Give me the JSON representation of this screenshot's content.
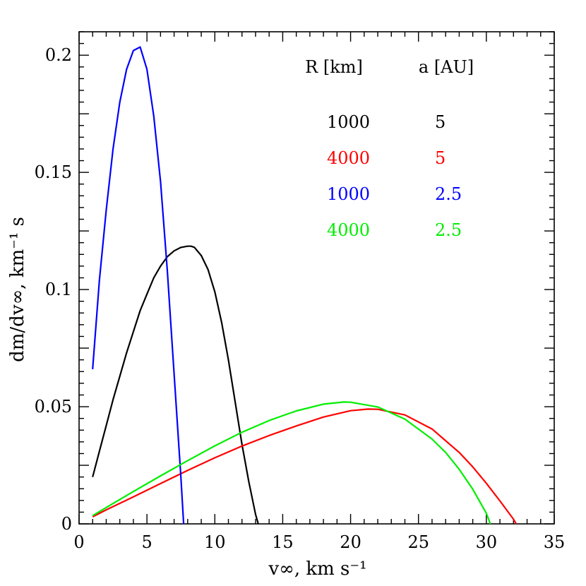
{
  "chart_data": {
    "type": "line",
    "xlabel": "v∞, km s⁻¹",
    "ylabel": "dm/dv∞, km⁻¹ s",
    "xlim": [
      0,
      35
    ],
    "ylim": [
      0,
      0.21
    ],
    "x_ticks": [
      "0",
      "5",
      "10",
      "15",
      "20",
      "25",
      "30",
      "35"
    ],
    "y_ticks": [
      "0",
      "0.05",
      "0.1",
      "0.15",
      "0.2"
    ],
    "legend": {
      "headers": [
        "R [km]",
        "a [AU]"
      ],
      "rows": [
        {
          "R": "1000",
          "a": "5",
          "color": "#000000"
        },
        {
          "R": "4000",
          "a": "5",
          "color": "#ff0000"
        },
        {
          "R": "1000",
          "a": "2.5",
          "color": "#0000ff"
        },
        {
          "R": "4000",
          "a": "2.5",
          "color": "#00ee00"
        }
      ],
      "placement": "top-right"
    },
    "series": [
      {
        "color": "#000000",
        "x": [
          1.0,
          1.5,
          2.0,
          2.5,
          3.0,
          3.5,
          4.0,
          4.5,
          5.0,
          5.5,
          6.0,
          6.5,
          7.0,
          7.5,
          8.0,
          8.25,
          8.5,
          9.0,
          9.5,
          10.0,
          10.5,
          11.0,
          11.5,
          12.0,
          12.5,
          13.0,
          13.2
        ],
        "y": [
          0.02,
          0.031,
          0.042,
          0.053,
          0.063,
          0.073,
          0.082,
          0.091,
          0.098,
          0.105,
          0.11,
          0.114,
          0.1165,
          0.118,
          0.1185,
          0.1185,
          0.118,
          0.1145,
          0.1085,
          0.099,
          0.086,
          0.07,
          0.052,
          0.034,
          0.018,
          0.004,
          0.0
        ]
      },
      {
        "color": "#ff0000",
        "x": [
          1,
          2,
          4,
          6,
          8,
          10,
          12,
          14,
          16,
          18,
          20,
          21.3,
          22,
          24,
          26,
          28,
          29,
          30,
          31,
          32,
          32.2
        ],
        "y": [
          0.003,
          0.006,
          0.0115,
          0.0172,
          0.0228,
          0.0282,
          0.0332,
          0.0377,
          0.0418,
          0.0456,
          0.0483,
          0.049,
          0.0489,
          0.0465,
          0.0405,
          0.0305,
          0.0243,
          0.0173,
          0.0098,
          0.002,
          0.0
        ]
      },
      {
        "color": "#0000ff",
        "x": [
          1.0,
          1.25,
          1.5,
          2.0,
          2.5,
          3.0,
          3.5,
          4.0,
          4.5,
          5.0,
          5.5,
          6.0,
          6.5,
          7.0,
          7.5,
          7.7
        ],
        "y": [
          0.066,
          0.085,
          0.104,
          0.134,
          0.16,
          0.18,
          0.194,
          0.202,
          0.2035,
          0.194,
          0.174,
          0.146,
          0.108,
          0.064,
          0.02,
          0.0
        ]
      },
      {
        "color": "#00ee00",
        "x": [
          1,
          2,
          4,
          6,
          8,
          10,
          12,
          14,
          16,
          18,
          19.5,
          20,
          22,
          24,
          26,
          27,
          28,
          29,
          30,
          30.3
        ],
        "y": [
          0.0035,
          0.007,
          0.0138,
          0.0205,
          0.027,
          0.0333,
          0.0391,
          0.0441,
          0.0482,
          0.0511,
          0.052,
          0.0519,
          0.0499,
          0.0447,
          0.0362,
          0.0305,
          0.0233,
          0.0148,
          0.0045,
          0.0
        ]
      }
    ]
  }
}
